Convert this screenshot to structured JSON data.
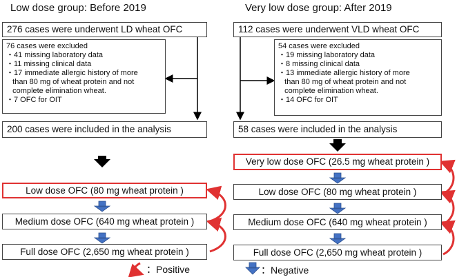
{
  "headers": {
    "left": "Low dose group: Before 2019",
    "right": "Very low dose group: After 2019"
  },
  "left": {
    "top_box": "276 cases were underwent LD wheat OFC",
    "excluded_title": "76 cases were excluded",
    "excluded_items": [
      "・41 missing laboratory data",
      "・11 missing clinical data",
      "・17 immediate allergic history of more",
      "   than 80 mg of wheat protein and not",
      "   complete elimination wheat.",
      "・7 OFC for OIT"
    ],
    "included_box": "200 cases were included in the analysis",
    "steps": [
      "Low dose OFC (80 mg wheat protein )",
      "Medium dose OFC (640 mg wheat protein )",
      "Full dose OFC (2,650 mg wheat protein )"
    ]
  },
  "right": {
    "top_box": "112 cases were underwent VLD wheat OFC",
    "excluded_title": "54 cases were excluded",
    "excluded_items": [
      "・19 missing laboratory data",
      "・8 missing clinical data",
      "・13 immediate allergic history of more",
      "   than 80 mg of wheat protein and not",
      "   complete elimination wheat.",
      "・14 OFC for OIT"
    ],
    "included_box": "58 cases were included in the analysis",
    "steps": [
      "Very low dose OFC (26.5 mg wheat protein )",
      "Low dose OFC (80 mg wheat protein )",
      "Medium dose OFC (640 mg wheat protein )",
      "Full dose OFC (2,650 mg wheat protein )"
    ]
  },
  "legend": {
    "positive": "：Positive",
    "negative": "：Negative"
  },
  "colors": {
    "highlight_border": "#e03232",
    "curved_arrow": "#e03232",
    "step_arrow": "#4472c4",
    "big_arrow": "#000000"
  }
}
